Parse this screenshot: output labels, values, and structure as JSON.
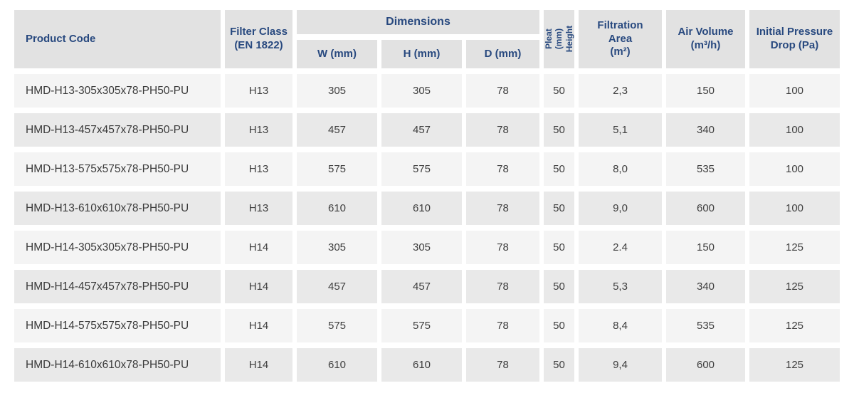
{
  "colors": {
    "header_text": "#28497f",
    "header_bg": "#e2e2e2",
    "row_odd_bg": "#f4f4f4",
    "row_even_bg": "#e9e9e9",
    "body_text": "#3e3e3e"
  },
  "table": {
    "headers": {
      "product_code": "Product Code",
      "filter_class": "Filter Class\n(EN 1822)",
      "dimensions": "Dimensions",
      "dim_w": "W (mm)",
      "dim_h": "H (mm)",
      "dim_d": "D (mm)",
      "pleat_height": "Pleat (mm)\nHeight",
      "filtration_area": "Filtration\nArea\n(m²)",
      "air_volume": "Air Volume\n(m³/h)",
      "initial_pressure_drop": "Initial Pressure\nDrop (Pa)"
    },
    "rows": [
      {
        "code": "HMD-H13-305x305x78-PH50-PU",
        "filter_class": "H13",
        "w": "305",
        "h": "305",
        "d": "78",
        "pleat": "50",
        "area": "2,3",
        "air": "150",
        "drop": "100"
      },
      {
        "code": "HMD-H13-457x457x78-PH50-PU",
        "filter_class": "H13",
        "w": "457",
        "h": "457",
        "d": "78",
        "pleat": "50",
        "area": "5,1",
        "air": "340",
        "drop": "100"
      },
      {
        "code": "HMD-H13-575x575x78-PH50-PU",
        "filter_class": "H13",
        "w": "575",
        "h": "575",
        "d": "78",
        "pleat": "50",
        "area": "8,0",
        "air": "535",
        "drop": "100"
      },
      {
        "code": "HMD-H13-610x610x78-PH50-PU",
        "filter_class": "H13",
        "w": "610",
        "h": "610",
        "d": "78",
        "pleat": "50",
        "area": "9,0",
        "air": "600",
        "drop": "100"
      },
      {
        "code": "HMD-H14-305x305x78-PH50-PU",
        "filter_class": "H14",
        "w": "305",
        "h": "305",
        "d": "78",
        "pleat": "50",
        "area": "2.4",
        "air": "150",
        "drop": "125"
      },
      {
        "code": "HMD-H14-457x457x78-PH50-PU",
        "filter_class": "H14",
        "w": "457",
        "h": "457",
        "d": "78",
        "pleat": "50",
        "area": "5,3",
        "air": "340",
        "drop": "125"
      },
      {
        "code": "HMD-H14-575x575x78-PH50-PU",
        "filter_class": "H14",
        "w": "575",
        "h": "575",
        "d": "78",
        "pleat": "50",
        "area": "8,4",
        "air": "535",
        "drop": "125"
      },
      {
        "code": "HMD-H14-610x610x78-PH50-PU",
        "filter_class": "H14",
        "w": "610",
        "h": "610",
        "d": "78",
        "pleat": "50",
        "area": "9,4",
        "air": "600",
        "drop": "125"
      }
    ]
  }
}
